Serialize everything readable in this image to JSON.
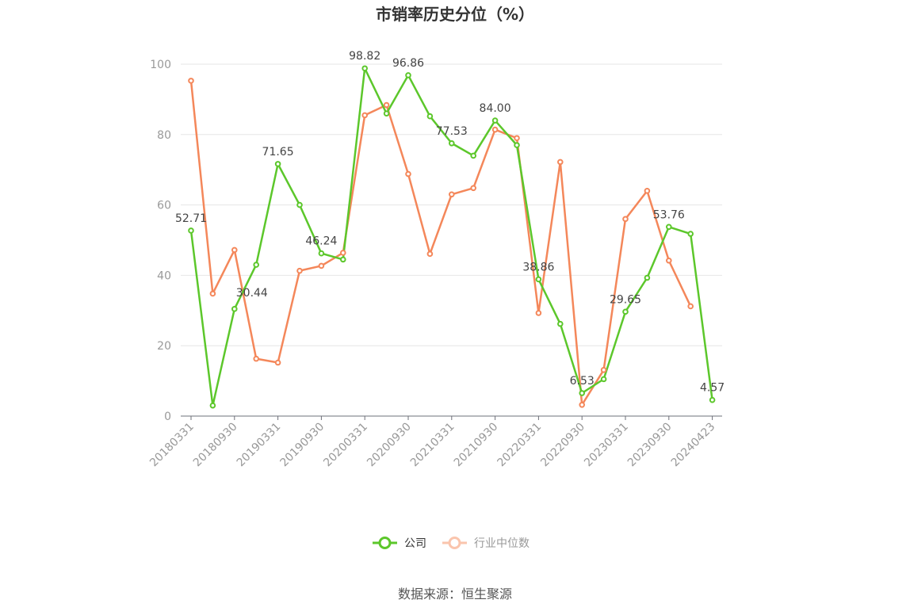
{
  "chart_data": {
    "type": "line",
    "title": "市销率历史分位（%）",
    "ylim": [
      0,
      100
    ],
    "yticks": [
      0,
      20,
      40,
      60,
      80,
      100
    ],
    "x": [
      "20180331",
      "20180630",
      "20180930",
      "20181231",
      "20190331",
      "20190630",
      "20190930",
      "20191231",
      "20200331",
      "20200630",
      "20200930",
      "20201231",
      "20210331",
      "20210630",
      "20210930",
      "20211231",
      "20220331",
      "20220630",
      "20220930",
      "20221231",
      "20230331",
      "20230630",
      "20230930",
      "20231231",
      "20240423"
    ],
    "xtick_labels": [
      "20180331",
      "20180930",
      "20190331",
      "20190930",
      "20200331",
      "20200930",
      "20210331",
      "20210930",
      "20220331",
      "20220930",
      "20230331",
      "20230930",
      "20240423"
    ],
    "series": [
      {
        "name": "公司",
        "color": "#5cc72b",
        "values": [
          52.71,
          3.0,
          30.44,
          43.0,
          71.65,
          60.0,
          46.24,
          44.5,
          98.82,
          86.0,
          96.86,
          85.2,
          77.53,
          74.0,
          84.0,
          77.0,
          38.86,
          26.2,
          6.53,
          10.5,
          29.65,
          39.3,
          53.76,
          51.8,
          4.57
        ],
        "labels": {
          "0": "52.71",
          "2": "30.44",
          "4": "71.65",
          "6": "46.24",
          "8": "98.82",
          "10": "96.86",
          "12": "77.53",
          "14": "84.00",
          "16": "38.86",
          "18": "6.53",
          "20": "29.65",
          "22": "53.76",
          "24": "4.57"
        }
      },
      {
        "name": "行业中位数",
        "color": "#f4875a",
        "values": [
          95.3,
          34.8,
          47.2,
          16.3,
          15.2,
          41.3,
          42.7,
          46.4,
          85.5,
          88.4,
          68.8,
          46.1,
          63.0,
          64.8,
          81.4,
          79.0,
          29.3,
          72.2,
          3.2,
          13.1,
          56.0,
          64.0,
          44.2,
          31.2,
          null
        ]
      }
    ],
    "legend": {
      "position": "bottom-center"
    },
    "grid": true
  },
  "source": "数据来源：恒生聚源"
}
